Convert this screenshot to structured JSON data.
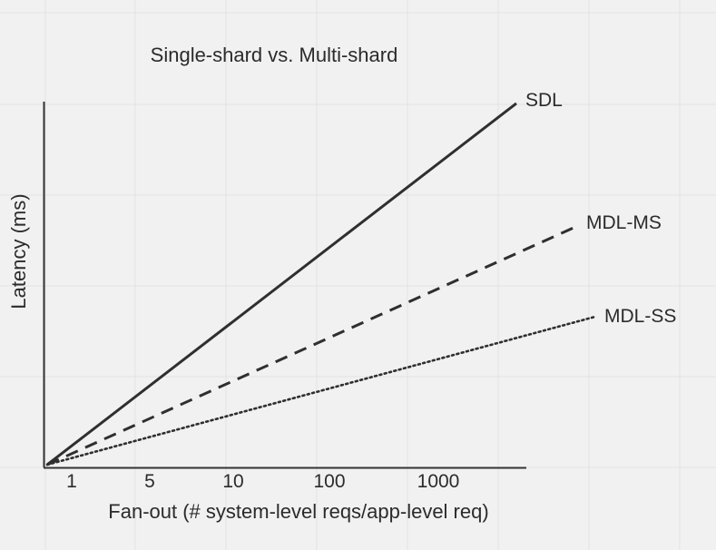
{
  "chart_data": {
    "type": "line",
    "title": "Single-shard vs. Multi-shard",
    "xlabel": "Fan-out (# system-level reqs/app-level req)",
    "ylabel": "Latency (ms)",
    "x_ticks": [
      "1",
      "5",
      "10",
      "100",
      "1000"
    ],
    "x_scale": "log",
    "y_ticks": [],
    "grid": true,
    "legend": "inline labels at line ends",
    "series": [
      {
        "name": "SDL",
        "style": "solid",
        "slope": 0.77,
        "color": "#2f2f2f"
      },
      {
        "name": "MDL-MS",
        "style": "dashed",
        "slope": 0.45,
        "color": "#2f2f2f"
      },
      {
        "name": "MDL-SS",
        "style": "dotted",
        "slope": 0.27,
        "color": "#2f2f2f"
      }
    ]
  }
}
